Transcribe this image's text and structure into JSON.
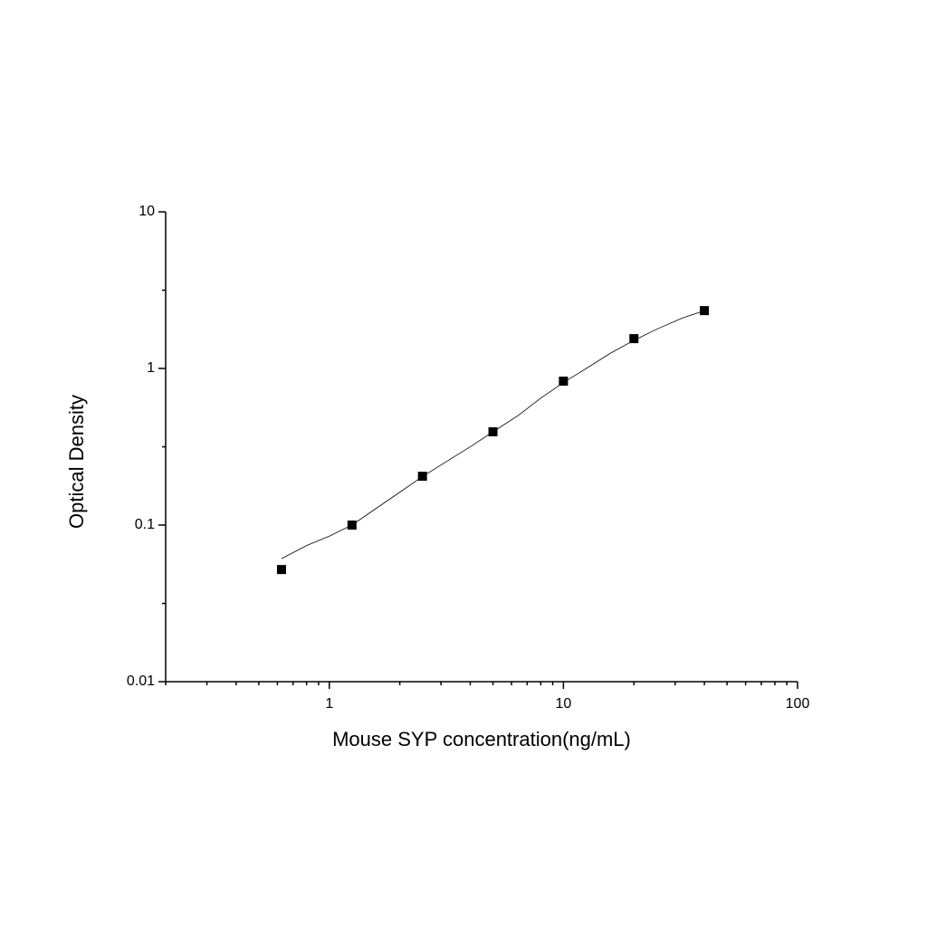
{
  "chart_data": {
    "type": "scatter",
    "xlabel": "Mouse SYP concentration(ng/mL)",
    "ylabel": "Optical Density",
    "xscale": "log",
    "yscale": "log",
    "xlim": [
      0.2,
      100
    ],
    "ylim": [
      0.01,
      10
    ],
    "xticks": [
      1,
      10,
      100
    ],
    "yticks": [
      0.01,
      0.1,
      1,
      10
    ],
    "xminorticks": [
      0.2,
      0.3,
      0.4,
      0.5,
      0.6,
      0.7,
      0.8,
      0.9,
      2,
      3,
      4,
      5,
      6,
      7,
      8,
      9,
      20,
      30,
      40,
      50,
      60,
      70,
      80,
      90
    ],
    "yminorticks": [
      0.0316,
      0.316,
      3.16
    ],
    "series": [
      {
        "kind": "points",
        "color": "#000000",
        "x": [
          0.625,
          1.25,
          2.5,
          5,
          10,
          20,
          40
        ],
        "values": [
          0.052,
          0.1,
          0.205,
          0.394,
          0.83,
          1.55,
          2.34
        ]
      },
      {
        "kind": "fit",
        "color": "#000000",
        "x": [
          0.625,
          0.8,
          1,
          1.25,
          1.6,
          2,
          2.5,
          3.2,
          4,
          5,
          6.4,
          8,
          10,
          12.8,
          16,
          20,
          25,
          32,
          40
        ],
        "values": [
          0.061,
          0.074,
          0.085,
          0.1,
          0.129,
          0.162,
          0.204,
          0.257,
          0.316,
          0.394,
          0.5,
          0.646,
          0.813,
          1.02,
          1.26,
          1.51,
          1.78,
          2.09,
          2.34
        ]
      }
    ]
  }
}
